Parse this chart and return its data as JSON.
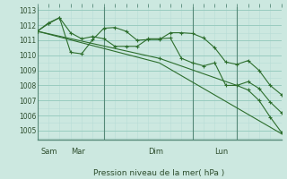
{
  "background_color": "#cce8e0",
  "grid_major_color": "#99ccc0",
  "grid_minor_color": "#b8ddd6",
  "line_color": "#2d6e2d",
  "dayline_color": "#558877",
  "title": "Pression niveau de la mer( hPa )",
  "ylim": [
    1004.4,
    1013.2
  ],
  "yticks": [
    1005,
    1006,
    1007,
    1008,
    1009,
    1010,
    1011,
    1012,
    1013
  ],
  "day_labels": [
    "Sam",
    "Mar",
    "Dim",
    "Lun"
  ],
  "day_positions": [
    0.0,
    36.0,
    84.0,
    108.0
  ],
  "xlim": [
    0,
    132
  ],
  "series1_x": [
    0,
    6,
    12,
    18,
    24,
    30,
    36,
    42,
    48,
    54,
    60,
    66,
    72,
    78,
    84,
    90,
    96,
    102,
    108,
    114,
    120,
    126,
    132
  ],
  "series1_y": [
    1011.6,
    1012.1,
    1012.5,
    1011.5,
    1011.1,
    1011.25,
    1011.1,
    1010.6,
    1010.6,
    1010.6,
    1011.1,
    1011.1,
    1011.15,
    1009.8,
    1009.5,
    1009.3,
    1009.5,
    1008.0,
    1008.0,
    1008.25,
    1007.8,
    1006.9,
    1006.2
  ],
  "series2_x": [
    0,
    6,
    12,
    18,
    24,
    30,
    36,
    42,
    48,
    54,
    60,
    66,
    72,
    78,
    84,
    90,
    96,
    102,
    108,
    114,
    120,
    126,
    132
  ],
  "series2_y": [
    1011.6,
    1012.15,
    1012.5,
    1010.2,
    1010.1,
    1011.05,
    1011.8,
    1011.85,
    1011.6,
    1011.0,
    1011.05,
    1011.05,
    1011.5,
    1011.5,
    1011.45,
    1011.15,
    1010.5,
    1009.55,
    1009.4,
    1009.65,
    1009.0,
    1008.0,
    1007.4
  ],
  "series3_x": [
    0,
    66,
    132
  ],
  "series3_y": [
    1011.6,
    1009.5,
    1004.8
  ],
  "series4_x": [
    0,
    66,
    108,
    114,
    120,
    126,
    132
  ],
  "series4_y": [
    1011.6,
    1009.8,
    1008.0,
    1007.7,
    1007.0,
    1005.9,
    1004.9
  ]
}
